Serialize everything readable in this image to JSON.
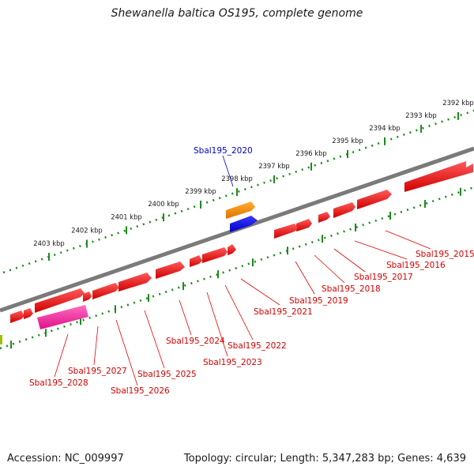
{
  "title": "Shewanella baltica OS195, complete genome",
  "footer": {
    "accession": "Accession: NC_009997",
    "summary": "Topology: circular; Length: 5,347,283 bp; Genes: 4,639"
  },
  "colors": {
    "backbone": "#7a7a7a",
    "tick": "#1f8a1f",
    "gene_red": "#e80000",
    "gene_orange": "#ff8c00",
    "gene_blue": "#0000e6",
    "gene_pink": "#ff2d9a",
    "label_red": "#d40000",
    "label_blue": "#0000c8"
  },
  "scale_labels": [
    "2392 kbp",
    "2393 kbp",
    "2394 kbp",
    "2395 kbp",
    "2396 kbp",
    "2397 kbp",
    "2398 kbp",
    "2399 kbp",
    "2400 kbp",
    "2401 kbp",
    "2402 kbp",
    "2403 kbp"
  ],
  "gene_labels": [
    {
      "text": "Sbal195_2015",
      "color": "red"
    },
    {
      "text": "Sbal195_2016",
      "color": "red"
    },
    {
      "text": "Sbal195_2017",
      "color": "red"
    },
    {
      "text": "Sbal195_2018",
      "color": "red"
    },
    {
      "text": "Sbal195_2019",
      "color": "red"
    },
    {
      "text": "Sbal195_2021",
      "color": "red"
    },
    {
      "text": "Sbal195_2022",
      "color": "red"
    },
    {
      "text": "Sbal195_2023",
      "color": "red"
    },
    {
      "text": "Sbal195_2024",
      "color": "red"
    },
    {
      "text": "Sbal195_2025",
      "color": "red"
    },
    {
      "text": "Sbal195_2026",
      "color": "red"
    },
    {
      "text": "Sbal195_2027",
      "color": "red"
    },
    {
      "text": "Sbal195_2028",
      "color": "red"
    },
    {
      "text": "Sbal195_2020",
      "color": "blue"
    }
  ]
}
